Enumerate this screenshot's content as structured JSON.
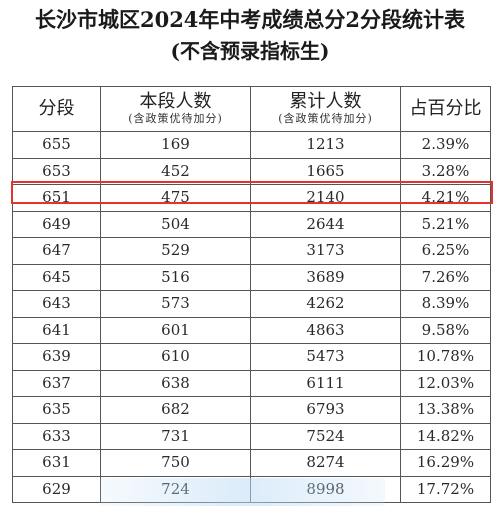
{
  "title": "长沙市城区2024年中考成绩总分2分段统计表",
  "subtitle": "(不含预录指标生)",
  "headers": {
    "col1": "分段",
    "col2_main": "本段人数",
    "col2_sub": "(含政策优待加分)",
    "col3_main": "累计人数",
    "col3_sub": "(含政策优待加分)",
    "col4": "占百分比"
  },
  "rows": [
    {
      "score": "655",
      "count": "169",
      "cumulative": "1213",
      "percent": "2.39%"
    },
    {
      "score": "653",
      "count": "452",
      "cumulative": "1665",
      "percent": "3.28%"
    },
    {
      "score": "651",
      "count": "475",
      "cumulative": "2140",
      "percent": "4.21%"
    },
    {
      "score": "649",
      "count": "504",
      "cumulative": "2644",
      "percent": "5.21%"
    },
    {
      "score": "647",
      "count": "529",
      "cumulative": "3173",
      "percent": "6.25%"
    },
    {
      "score": "645",
      "count": "516",
      "cumulative": "3689",
      "percent": "7.26%"
    },
    {
      "score": "643",
      "count": "573",
      "cumulative": "4262",
      "percent": "8.39%"
    },
    {
      "score": "641",
      "count": "601",
      "cumulative": "4863",
      "percent": "9.58%"
    },
    {
      "score": "639",
      "count": "610",
      "cumulative": "5473",
      "percent": "10.78%"
    },
    {
      "score": "637",
      "count": "638",
      "cumulative": "6111",
      "percent": "12.03%"
    },
    {
      "score": "635",
      "count": "682",
      "cumulative": "6793",
      "percent": "13.38%"
    },
    {
      "score": "633",
      "count": "731",
      "cumulative": "7524",
      "percent": "14.82%"
    },
    {
      "score": "631",
      "count": "750",
      "cumulative": "8274",
      "percent": "16.29%"
    },
    {
      "score": "629",
      "count": "724",
      "cumulative": "8998",
      "percent": "17.72%"
    }
  ],
  "highlight_color": "#e0352b"
}
